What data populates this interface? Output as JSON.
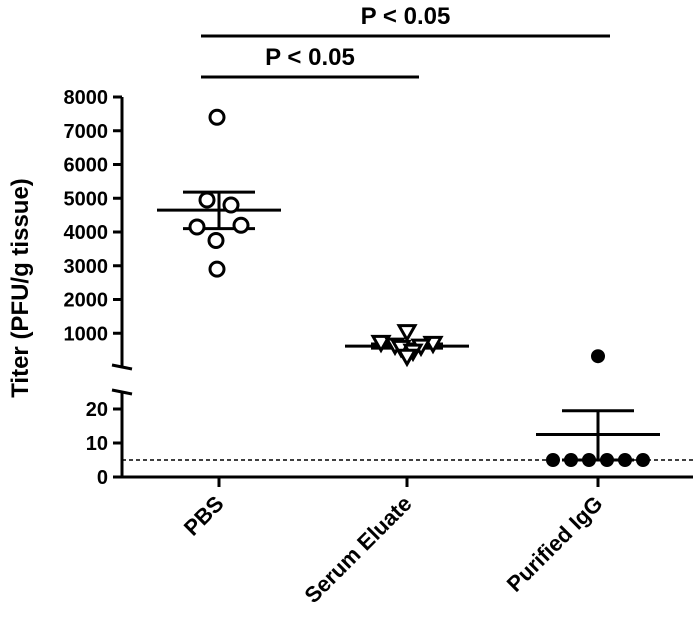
{
  "chart_data": {
    "type": "scatter",
    "title": "",
    "xlabel": "",
    "ylabel": "Titer (PFU/g tissue)",
    "categories": [
      "PBS",
      "Serum Eluate",
      "Purified IgG"
    ],
    "y_axis_segments": {
      "upper": {
        "ylim": [
          0,
          8000
        ],
        "ticks": [
          1000,
          2000,
          3000,
          4000,
          5000,
          6000,
          7000,
          8000
        ]
      },
      "lower": {
        "ylim": [
          0,
          25
        ],
        "ticks": [
          0,
          10,
          20
        ]
      }
    },
    "detection_limit": 5,
    "series": [
      {
        "category": "PBS",
        "marker": "open-circle",
        "points": [
          7400,
          4950,
          4800,
          4150,
          4200,
          3750,
          2900
        ],
        "mean": 4650,
        "sem": [
          4100,
          5180
        ],
        "segment": "upper"
      },
      {
        "category": "Serum Eluate",
        "marker": "open-triangle-down",
        "points": [
          1050,
          730,
          700,
          650,
          620,
          580,
          470,
          320
        ],
        "mean": 620,
        "sem": [
          560,
          680
        ],
        "segment": "upper"
      },
      {
        "category": "Purified IgG",
        "marker": "filled-circle",
        "points": [
          5,
          5,
          5,
          5,
          5,
          5
        ],
        "outlier_upper": 320,
        "mean": 12.5,
        "sem": [
          5,
          19.5
        ],
        "segment": "lower"
      }
    ],
    "significance": [
      {
        "from": "PBS",
        "to": "Serum Eluate",
        "label": "P < 0.05"
      },
      {
        "from": "PBS",
        "to": "Purified IgG",
        "label": "P < 0.05"
      }
    ],
    "grid": false,
    "legend": "none"
  }
}
